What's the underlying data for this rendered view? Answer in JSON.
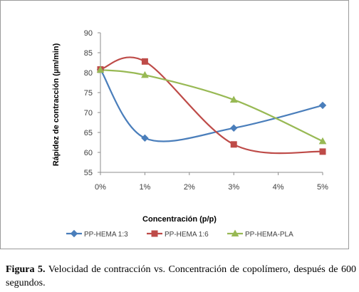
{
  "chart_data": {
    "type": "line",
    "xlabel": "Concentración (p/p)",
    "ylabel": "Rápidez de contracción (µm/min)",
    "categories": [
      "0%",
      "1%",
      "2%",
      "3%",
      "4%",
      "5%"
    ],
    "x": [
      0,
      1,
      2,
      3,
      4,
      5
    ],
    "ylim": [
      55,
      90
    ],
    "yticks": [
      55,
      60,
      65,
      70,
      75,
      80,
      85,
      90
    ],
    "grid": false,
    "smooth": true,
    "legend_position": "bottom",
    "series": [
      {
        "name": "PP-HEMA 1:3",
        "color": "#4a7ebb",
        "marker": "diamond",
        "x": [
          0,
          1,
          3,
          5
        ],
        "values": [
          80.8,
          63.6,
          66.1,
          71.8
        ]
      },
      {
        "name": "PP-HEMA 1:6",
        "color": "#be4b48",
        "marker": "square",
        "x": [
          0,
          1,
          3,
          5
        ],
        "values": [
          80.8,
          82.8,
          62.0,
          60.2
        ]
      },
      {
        "name": "PP-HEMA-PLA",
        "color": "#98b954",
        "marker": "triangle",
        "x": [
          0,
          1,
          3,
          5
        ],
        "values": [
          80.7,
          79.4,
          73.2,
          62.8
        ]
      }
    ]
  },
  "caption": {
    "label": "Figura 5.",
    "text": " Velocidad de contracción vs. Concentración de copolímero, después de 600 segundos."
  }
}
